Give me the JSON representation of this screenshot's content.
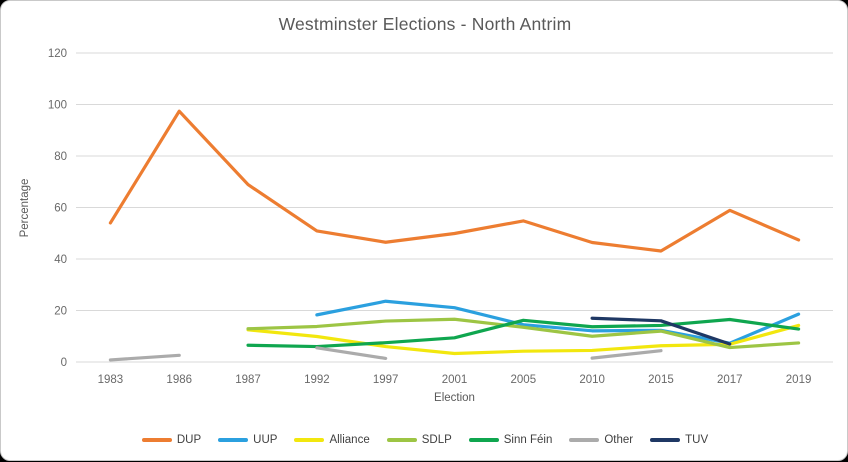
{
  "window": {
    "background": "#ffffff",
    "border_color": "#c9c9c9",
    "corner_color": "#000000"
  },
  "chart_data": {
    "type": "line",
    "title": "Westminster Elections - North Antrim",
    "xlabel": "Election",
    "ylabel": "Percentage",
    "ylim": [
      0,
      120
    ],
    "yticks": [
      0,
      20,
      40,
      60,
      80,
      100,
      120
    ],
    "grid": "horizontal",
    "grid_color": "#d9d9d9",
    "tick_label_color": "#696969",
    "title_color": "#595959",
    "legend_position": "bottom",
    "categories": [
      "1983",
      "1986",
      "1987",
      "1992",
      "1997",
      "2001",
      "2005",
      "2010",
      "2015",
      "2017",
      "2019"
    ],
    "series": [
      {
        "name": "DUP",
        "color": "#ED7D31",
        "values": [
          54.0,
          97.4,
          68.9,
          50.9,
          46.5,
          49.9,
          54.8,
          46.4,
          43.1,
          58.9,
          47.4
        ]
      },
      {
        "name": "UUP",
        "color": "#2BA0DF",
        "values": [
          null,
          null,
          null,
          18.3,
          23.6,
          21.1,
          14.5,
          12.1,
          12.3,
          7.3,
          18.6
        ]
      },
      {
        "name": "Alliance",
        "color": "#F2E70E",
        "values": [
          null,
          null,
          12.5,
          9.9,
          6.0,
          3.3,
          4.2,
          4.5,
          6.3,
          6.9,
          14.2
        ]
      },
      {
        "name": "SDLP",
        "color": "#9DC544",
        "values": [
          null,
          null,
          12.9,
          13.8,
          15.9,
          16.6,
          13.5,
          10.0,
          12.0,
          5.6,
          7.4
        ]
      },
      {
        "name": "Sinn Féin",
        "color": "#0FA64F",
        "values": [
          null,
          null,
          6.5,
          6.0,
          7.5,
          9.4,
          16.2,
          13.7,
          14.2,
          16.5,
          12.8
        ]
      },
      {
        "name": "Other",
        "color": "#ABABAB",
        "values": [
          0.8,
          2.6,
          null,
          5.5,
          1.4,
          null,
          null,
          1.5,
          4.4,
          null,
          null
        ]
      },
      {
        "name": "TUV",
        "color": "#1F3864",
        "values": [
          null,
          null,
          null,
          null,
          null,
          null,
          null,
          17.0,
          16.0,
          7.0,
          null
        ]
      }
    ]
  }
}
